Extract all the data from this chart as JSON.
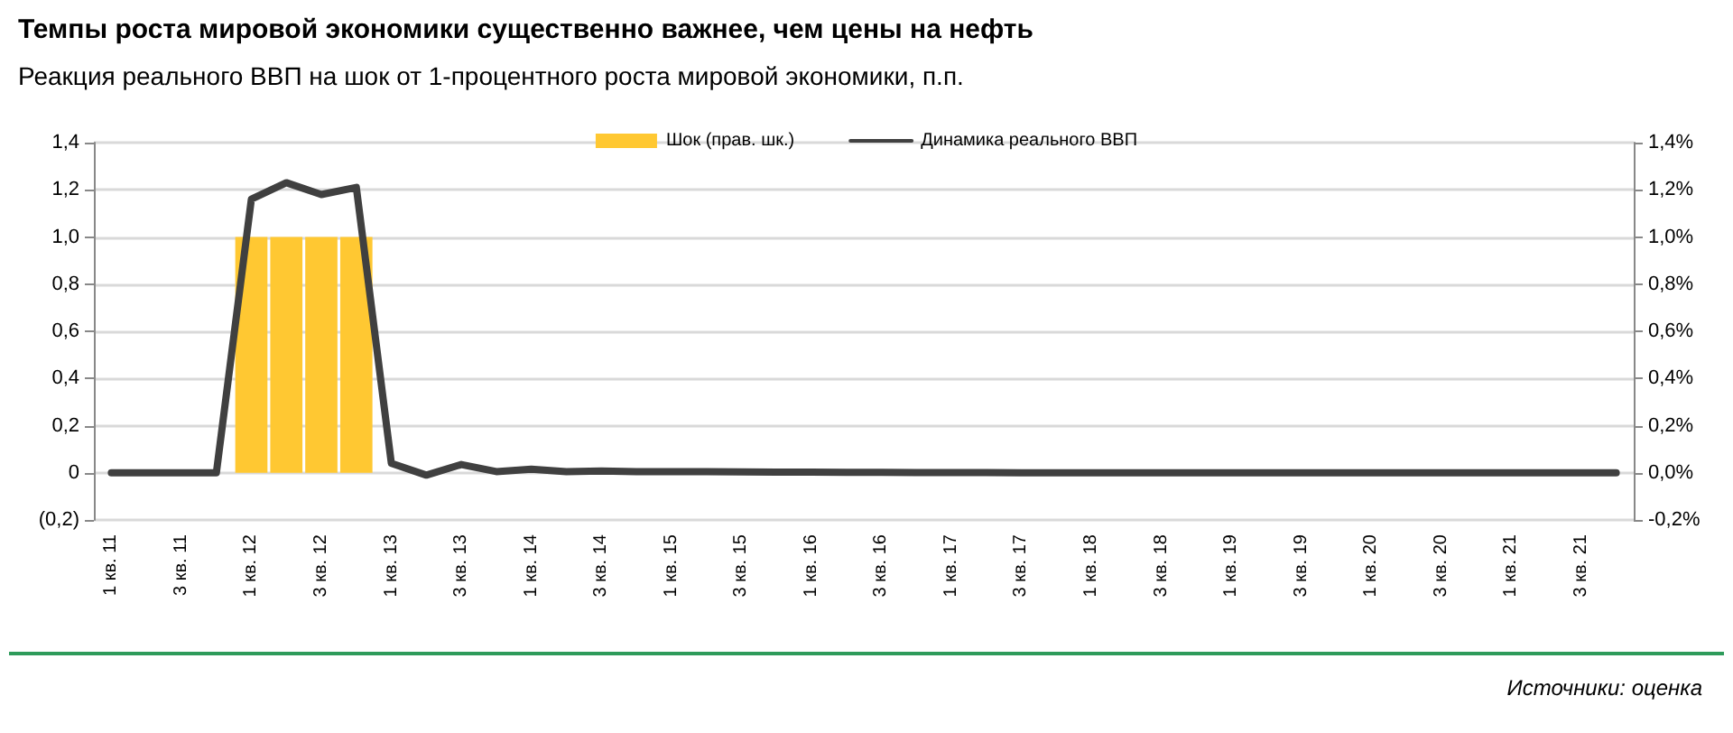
{
  "chart_data": {
    "type": "line",
    "title": "Темпы роста мировой экономики существенно важнее, чем цены на нефть",
    "subtitle": "Реакция реального ВВП на шок от 1-процентного роста мировой экономики, п.п.",
    "annotations": [
      "Источники: оценка"
    ],
    "categories": [
      "1 кв. 11",
      null,
      "3 кв. 11",
      null,
      "1 кв. 12",
      null,
      "3 кв. 12",
      null,
      "1 кв. 13",
      null,
      "3 кв. 13",
      null,
      "1 кв. 14",
      null,
      "3 кв. 14",
      null,
      "1 кв. 15",
      null,
      "3 кв. 15",
      null,
      "1 кв. 16",
      null,
      "3 кв. 16",
      null,
      "1 кв. 17",
      null,
      "3 кв. 17",
      null,
      "1 кв. 18",
      null,
      "3 кв. 18",
      null,
      "1 кв. 19",
      null,
      "3 кв. 19",
      null,
      "1 кв. 20",
      null,
      "3 кв. 20",
      null,
      "1 кв. 21",
      null,
      "3 кв. 21",
      null
    ],
    "series": [
      {
        "name": "Шок (прав. шк.)",
        "type": "bar",
        "color": "#ffc832",
        "values": [
          0,
          0,
          0,
          0,
          1.0,
          1.0,
          1.0,
          1.0,
          0,
          0,
          0,
          0,
          0,
          0,
          0,
          0,
          0,
          0,
          0,
          0,
          0,
          0,
          0,
          0,
          0,
          0,
          0,
          0,
          0,
          0,
          0,
          0,
          0,
          0,
          0,
          0,
          0,
          0,
          0,
          0,
          0,
          0,
          0,
          0
        ]
      },
      {
        "name": "Динамика реального ВВП",
        "color": "#404040",
        "values": [
          0,
          0,
          0,
          0,
          1.16,
          1.23,
          1.18,
          1.21,
          0.04,
          -0.01,
          0.035,
          0.005,
          0.015,
          0.005,
          0.008,
          0.005,
          0.005,
          0.005,
          0.004,
          0.003,
          0.003,
          0.002,
          0.002,
          0.001,
          0.001,
          0.001,
          0,
          0,
          0,
          0,
          0,
          0,
          0,
          0,
          0,
          0,
          0,
          0,
          0,
          0,
          0,
          0,
          0,
          0
        ]
      }
    ],
    "ylim": [
      -0.2,
      1.4
    ],
    "yticks": [
      {
        "value": -0.2,
        "label": "(0,2)"
      },
      {
        "value": 0,
        "label": "0"
      },
      {
        "value": 0.2,
        "label": "0,2"
      },
      {
        "value": 0.4,
        "label": "0,4"
      },
      {
        "value": 0.6,
        "label": "0,6"
      },
      {
        "value": 0.8,
        "label": "0,8"
      },
      {
        "value": 1.0,
        "label": "1,0"
      },
      {
        "value": 1.2,
        "label": "1,2"
      },
      {
        "value": 1.4,
        "label": "1,4"
      }
    ],
    "y2lim": [
      -0.2,
      1.4
    ],
    "y2ticks": [
      {
        "value": -0.2,
        "label": "-0,2%"
      },
      {
        "value": 0,
        "label": "0,0%"
      },
      {
        "value": 0.2,
        "label": "0,2%"
      },
      {
        "value": 0.4,
        "label": "0,4%"
      },
      {
        "value": 0.6,
        "label": "0,6%"
      },
      {
        "value": 0.8,
        "label": "0,8%"
      },
      {
        "value": 1.0,
        "label": "1,0%"
      },
      {
        "value": 1.2,
        "label": "1,2%"
      },
      {
        "value": 1.4,
        "label": "1,4%"
      }
    ],
    "grid": "y",
    "legend": "top"
  }
}
